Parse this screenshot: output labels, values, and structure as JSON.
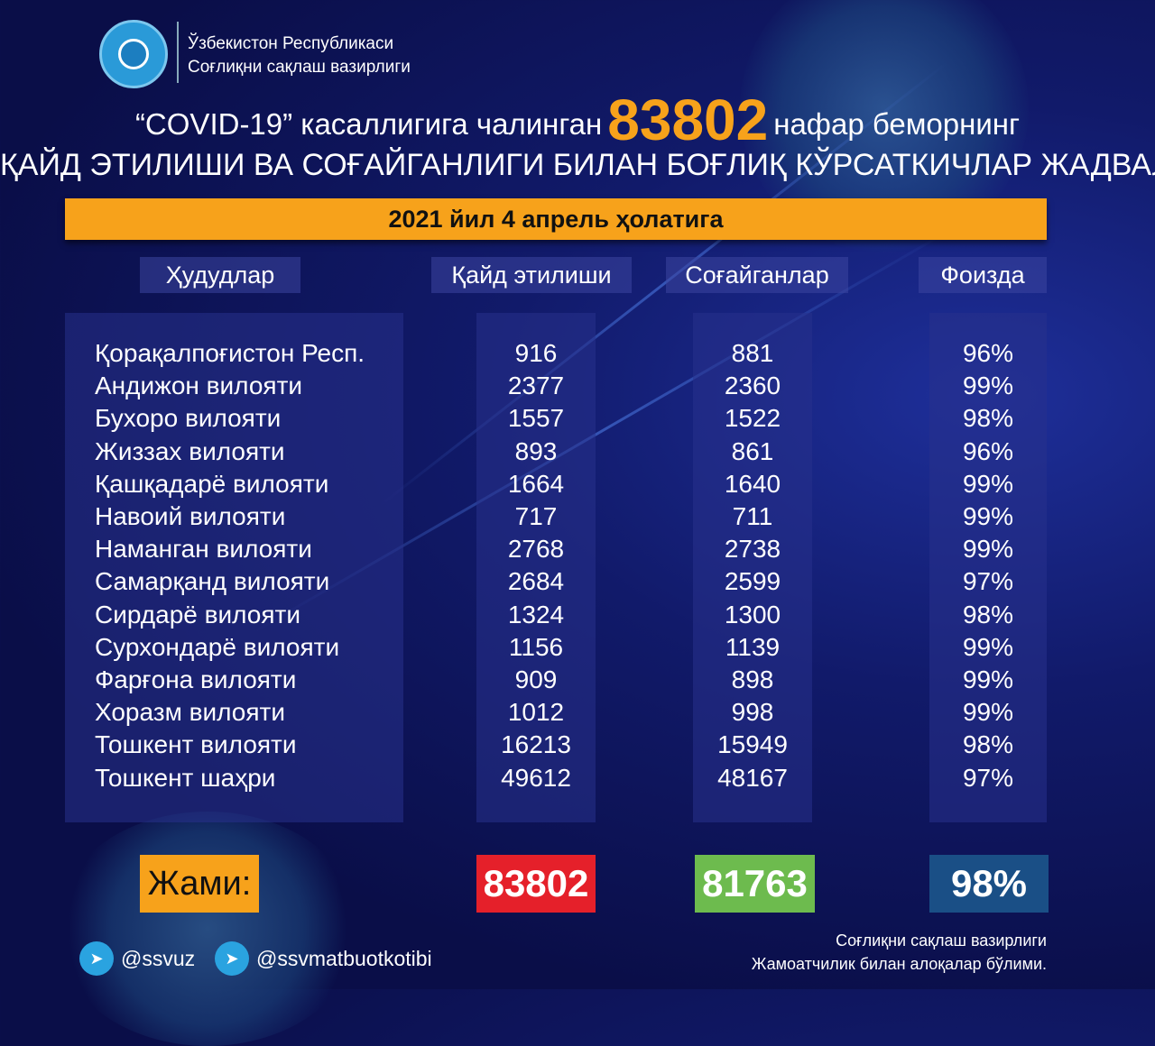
{
  "header": {
    "org_line1": "Ўзбекистон Республикаси",
    "org_line2": "Соғлиқни сақлаш вазирлиги"
  },
  "title": {
    "part1": "“COVID-19” касаллигига чалинган",
    "count": "83802",
    "part2": "нафар беморнинг",
    "line2": "ҚАЙД ЭТИЛИШИ ВА СОҒАЙГАНЛИГИ БИЛАН БОҒЛИҚ КЎРСАТКИЧЛАР ЖАДВАЛИ"
  },
  "date": "2021 йил 4 апрель ҳолатига",
  "columns": [
    "Ҳудудлар",
    "Қайд этилиши",
    "Соғайганлар",
    "Фоизда"
  ],
  "rows": [
    [
      "Қорақалпоғистон Респ.",
      "916",
      "881",
      "96%"
    ],
    [
      "Андижон вилояти",
      "2377",
      "2360",
      "99%"
    ],
    [
      "Бухоро вилояти",
      "1557",
      "1522",
      "98%"
    ],
    [
      "Жиззах вилояти",
      "893",
      "861",
      "96%"
    ],
    [
      "Қашқадарё вилояти",
      "1664",
      "1640",
      "99%"
    ],
    [
      "Навоий вилояти",
      "717",
      "711",
      "99%"
    ],
    [
      "Наманган вилояти",
      "2768",
      "2738",
      "99%"
    ],
    [
      "Самарқанд вилояти",
      "2684",
      "2599",
      "97%"
    ],
    [
      "Сирдарё вилояти",
      "1324",
      "1300",
      "98%"
    ],
    [
      "Сурхондарё вилояти",
      "1156",
      "1139",
      "99%"
    ],
    [
      "Фарғона вилояти",
      "909",
      "898",
      "99%"
    ],
    [
      "Хоразм вилояти",
      "1012",
      "998",
      "99%"
    ],
    [
      "Тошкент вилояти",
      "16213",
      "15949",
      "98%"
    ],
    [
      "Тошкент шаҳри",
      "49612",
      "48167",
      "97%"
    ]
  ],
  "totals": {
    "label": "Жами:",
    "registered": "83802",
    "recovered": "81763",
    "percent": "98%"
  },
  "colors": {
    "orange": "#f7a21b",
    "red": "#e5202a",
    "green": "#6dbb4e",
    "blue": "#1a4f86"
  },
  "social": [
    {
      "icon": "telegram-icon",
      "handle": "@ssvuz"
    },
    {
      "icon": "telegram-icon",
      "handle": "@ssvmatbuotkotibi"
    }
  ],
  "footer": {
    "line1": "Соғлиқни сақлаш вазирлиги",
    "line2": "Жамоатчилик билан алоқалар бўлими."
  }
}
